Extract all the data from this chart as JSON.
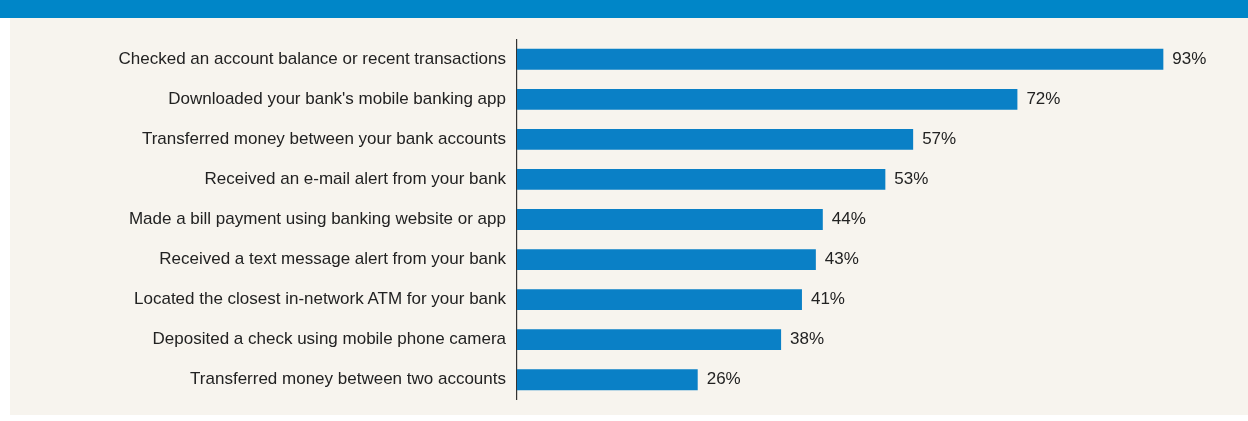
{
  "chart_data": {
    "type": "bar",
    "orientation": "horizontal",
    "categories": [
      "Checked an account balance or recent transactions",
      "Downloaded your bank's mobile banking app",
      "Transferred money between your bank accounts",
      "Received an e-mail alert from your bank",
      "Made a bill payment using banking website or app",
      "Received a text message alert from your bank",
      "Located the closest in-network ATM for your bank",
      "Deposited a check using mobile phone camera",
      "Transferred money between two accounts"
    ],
    "values": [
      93,
      72,
      57,
      53,
      44,
      43,
      41,
      38,
      26
    ],
    "value_labels": [
      "93%",
      "72%",
      "57%",
      "53%",
      "44%",
      "43%",
      "41%",
      "38%",
      "26%"
    ],
    "color": "#0a80c6",
    "legend": false
  }
}
